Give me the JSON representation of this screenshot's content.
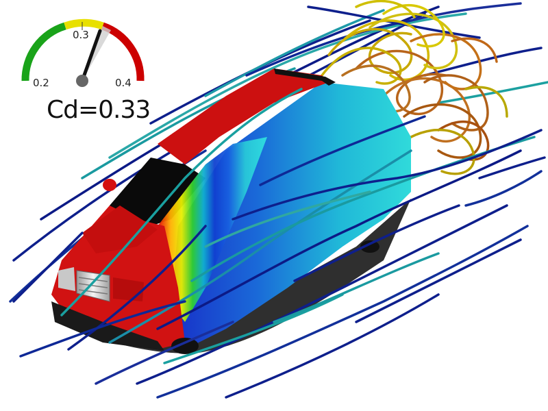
{
  "gauge": {
    "min_label": "0.2",
    "mid_label": "0.3",
    "max_label": "0.4",
    "value": 0.33,
    "range": [
      0.2,
      0.4
    ],
    "colors": {
      "low": "#1aa31a",
      "mid": "#e8e000",
      "high": "#cc0000"
    }
  },
  "readout": {
    "text": "Cd=0.33"
  },
  "scene": {
    "subject": "car-cfd-pressure",
    "body_color": "#cc0f0f",
    "streamline_colors": [
      "#0a1a8c",
      "#1aa0a0",
      "#c8b000",
      "#b86a10"
    ]
  }
}
